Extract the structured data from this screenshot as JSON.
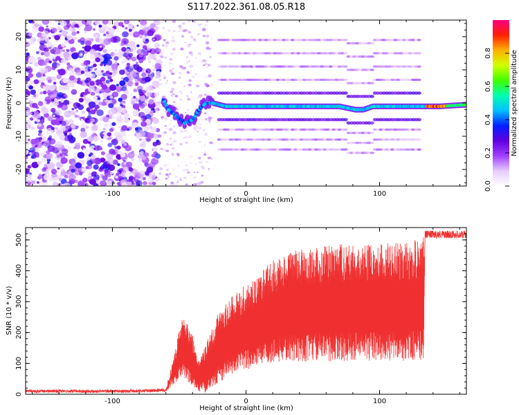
{
  "figure_title": "S117.2022.361.08.05.R18",
  "colors": {
    "snr_line": "#f03030",
    "axis": "#000000",
    "background": "#ffffff"
  },
  "chart_data": [
    {
      "type": "heatmap",
      "title": "",
      "xlabel": "Height of straight line (km)",
      "ylabel": "Frequency (Hz)",
      "xlim": [
        -165,
        165
      ],
      "ylim": [
        -25,
        25
      ],
      "xticks": [
        -100,
        0,
        100
      ],
      "xtick_labels": [
        "-100",
        "0",
        "100"
      ],
      "yticks": [
        -20,
        -10,
        0,
        10,
        20
      ],
      "ytick_labels": [
        "-20",
        "-10",
        "0",
        "10",
        "20"
      ],
      "colorbar": {
        "label": "Normalized spectral amplitude",
        "range": [
          0,
          1
        ],
        "ticks": [
          0.0,
          0.2,
          0.4,
          0.6,
          0.8
        ],
        "tick_labels": [
          "0.0",
          "0.2",
          "0.4",
          "0.6",
          "0.8"
        ],
        "colormap": [
          "#ffffff",
          "#e6ccff",
          "#a040ff",
          "#6000e0",
          "#0020ff",
          "#00c0ff",
          "#00ffb0",
          "#40ff00",
          "#d0ff00",
          "#ffb000",
          "#ff2000",
          "#ff0080"
        ]
      },
      "main_trace": [
        [
          -62,
          1
        ],
        [
          -58,
          -2
        ],
        [
          -52,
          -4
        ],
        [
          -46,
          -6
        ],
        [
          -40,
          -5
        ],
        [
          -35,
          -2
        ],
        [
          -30,
          0
        ],
        [
          -25,
          0
        ],
        [
          -15,
          -1
        ],
        [
          -5,
          -1
        ],
        [
          5,
          -1
        ],
        [
          20,
          -1
        ],
        [
          50,
          -1
        ],
        [
          70,
          -1
        ],
        [
          82,
          -2
        ],
        [
          88,
          -2
        ],
        [
          95,
          -1
        ],
        [
          110,
          -1
        ],
        [
          130,
          -1
        ],
        [
          145,
          -1
        ],
        [
          165,
          -0.5
        ]
      ],
      "side_bands_hz": [
        -14,
        -11,
        -8,
        -5,
        3,
        7,
        11,
        15,
        19
      ],
      "side_band_range_km": [
        -20,
        130
      ],
      "high_amplitude_segment_km": [
        130,
        165
      ]
    },
    {
      "type": "line",
      "title": "",
      "xlabel": "Height of straight line (km)",
      "ylabel": "SNR (10 * v/v)",
      "xlim": [
        -165,
        165
      ],
      "ylim": [
        0,
        540
      ],
      "xticks": [
        -100,
        0,
        100
      ],
      "xtick_labels": [
        "-100",
        "0",
        "100"
      ],
      "yticks": [
        0,
        100,
        200,
        300,
        400,
        500
      ],
      "ytick_labels": [
        "0",
        "100",
        "200",
        "300",
        "400",
        "500"
      ],
      "series": [
        {
          "envelope_x": [
            -165,
            -80,
            -60,
            -52,
            -48,
            -44,
            -40,
            -36,
            -30,
            -25,
            -20,
            -10,
            0,
            10,
            20,
            30,
            40,
            50,
            60,
            80,
            100,
            120,
            133,
            134,
            140,
            165
          ],
          "envelope_low": [
            5,
            5,
            8,
            40,
            60,
            40,
            30,
            10,
            5,
            20,
            40,
            60,
            80,
            90,
            100,
            105,
            105,
            105,
            105,
            108,
            108,
            108,
            110,
            505,
            505,
            505
          ],
          "envelope_high": [
            15,
            15,
            20,
            165,
            250,
            230,
            190,
            110,
            160,
            220,
            270,
            320,
            360,
            390,
            440,
            460,
            470,
            480,
            485,
            490,
            490,
            495,
            510,
            530,
            530,
            530
          ]
        }
      ]
    }
  ]
}
